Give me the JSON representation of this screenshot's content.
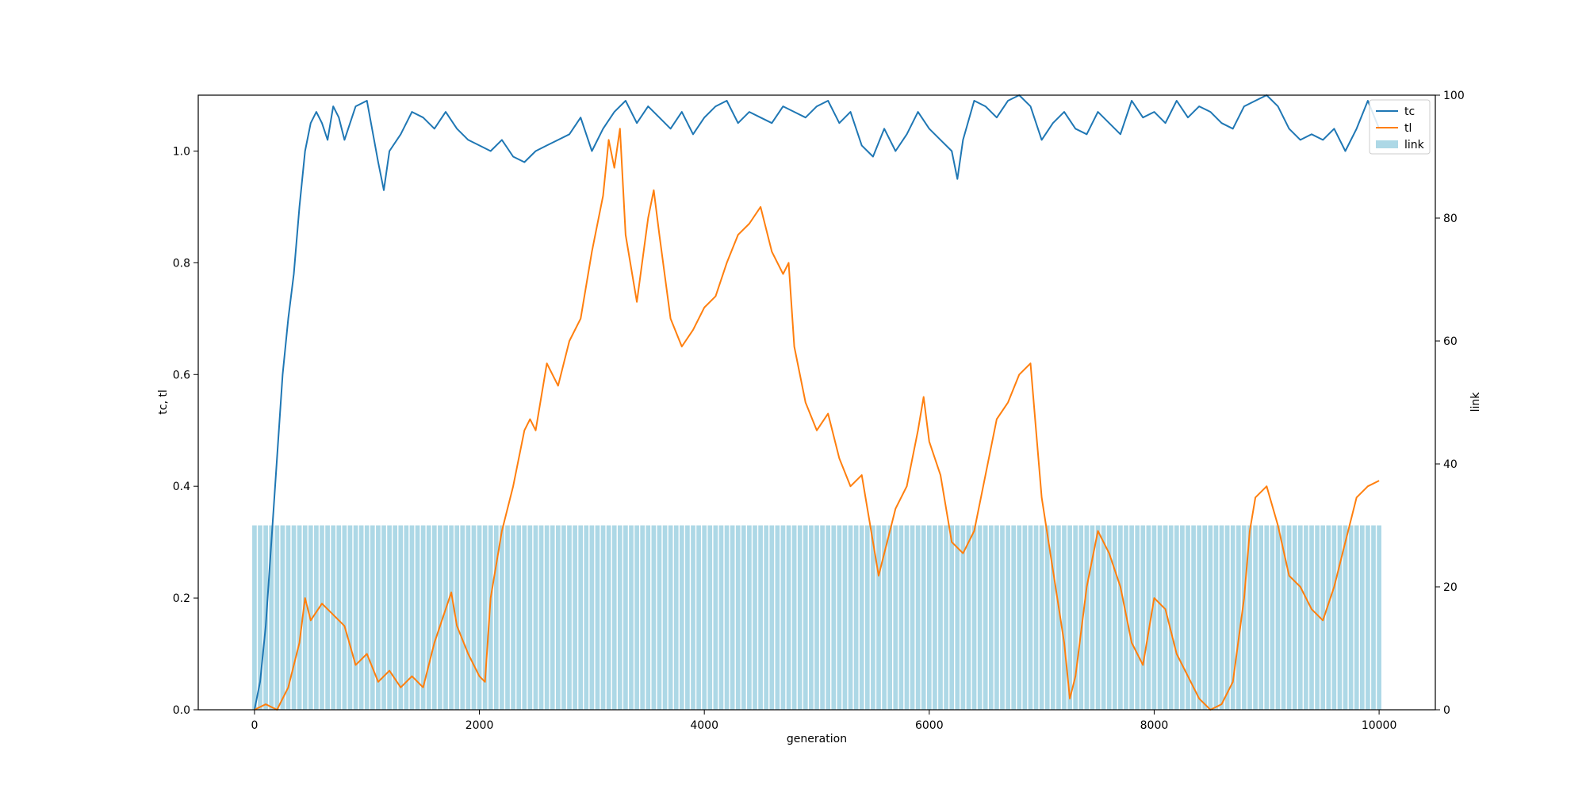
{
  "chart_data": {
    "type": "line",
    "title": "",
    "xlabel": "generation",
    "ylabel": "tc, tl",
    "y2label": "link",
    "xlim": [
      -500,
      10500
    ],
    "ylim": [
      0,
      1.1
    ],
    "y2lim": [
      0,
      100
    ],
    "xticks": [
      0,
      2000,
      4000,
      6000,
      8000,
      10000
    ],
    "xtick_labels": [
      "0",
      "2000",
      "4000",
      "6000",
      "8000",
      "10000"
    ],
    "yticks": [
      0,
      0.2,
      0.4,
      0.6,
      0.8,
      1.0
    ],
    "ytick_labels": [
      "0.0",
      "0.2",
      "0.4",
      "0.6",
      "0.8",
      "1.0"
    ],
    "y2ticks": [
      0,
      20,
      40,
      60,
      80,
      100
    ],
    "y2tick_labels": [
      "0",
      "20",
      "40",
      "60",
      "80",
      "100"
    ],
    "grid": false,
    "legend_position": "top-right",
    "series": [
      {
        "name": "tc",
        "axis": "left",
        "kind": "line",
        "color": "#1f77b4",
        "x": [
          0,
          50,
          100,
          150,
          200,
          250,
          300,
          350,
          400,
          450,
          500,
          550,
          600,
          650,
          700,
          750,
          800,
          900,
          1000,
          1100,
          1150,
          1200,
          1300,
          1400,
          1500,
          1600,
          1700,
          1800,
          1900,
          2000,
          2100,
          2200,
          2300,
          2400,
          2500,
          2600,
          2700,
          2800,
          2900,
          3000,
          3100,
          3200,
          3300,
          3400,
          3500,
          3600,
          3700,
          3800,
          3900,
          4000,
          4100,
          4200,
          4300,
          4400,
          4500,
          4600,
          4700,
          4800,
          4900,
          5000,
          5100,
          5200,
          5300,
          5400,
          5500,
          5600,
          5700,
          5800,
          5900,
          6000,
          6100,
          6200,
          6250,
          6300,
          6400,
          6500,
          6600,
          6700,
          6800,
          6900,
          7000,
          7100,
          7200,
          7300,
          7400,
          7500,
          7600,
          7700,
          7800,
          7900,
          8000,
          8100,
          8200,
          8300,
          8400,
          8500,
          8600,
          8700,
          8800,
          8900,
          9000,
          9100,
          9200,
          9300,
          9400,
          9500,
          9600,
          9700,
          9800,
          9900,
          10000
        ],
        "values": [
          0.0,
          0.05,
          0.15,
          0.3,
          0.45,
          0.6,
          0.7,
          0.78,
          0.9,
          1.0,
          1.05,
          1.07,
          1.05,
          1.02,
          1.08,
          1.06,
          1.02,
          1.08,
          1.09,
          0.98,
          0.93,
          1.0,
          1.03,
          1.07,
          1.06,
          1.04,
          1.07,
          1.04,
          1.02,
          1.01,
          1.0,
          1.02,
          0.99,
          0.98,
          1.0,
          1.01,
          1.02,
          1.03,
          1.06,
          1.0,
          1.04,
          1.07,
          1.09,
          1.05,
          1.08,
          1.06,
          1.04,
          1.07,
          1.03,
          1.06,
          1.08,
          1.09,
          1.05,
          1.07,
          1.06,
          1.05,
          1.08,
          1.07,
          1.06,
          1.08,
          1.09,
          1.05,
          1.07,
          1.01,
          0.99,
          1.04,
          1.0,
          1.03,
          1.07,
          1.04,
          1.02,
          1.0,
          0.95,
          1.02,
          1.09,
          1.08,
          1.06,
          1.09,
          1.1,
          1.08,
          1.02,
          1.05,
          1.07,
          1.04,
          1.03,
          1.07,
          1.05,
          1.03,
          1.09,
          1.06,
          1.07,
          1.05,
          1.09,
          1.06,
          1.08,
          1.07,
          1.05,
          1.04,
          1.08,
          1.09,
          1.1,
          1.08,
          1.04,
          1.02,
          1.03,
          1.02,
          1.04,
          1.0,
          1.04,
          1.09,
          1.04
        ]
      },
      {
        "name": "tl",
        "axis": "left",
        "kind": "line",
        "color": "#ff7f0e",
        "x": [
          0,
          100,
          200,
          300,
          400,
          450,
          500,
          600,
          700,
          800,
          900,
          1000,
          1100,
          1200,
          1300,
          1400,
          1500,
          1600,
          1700,
          1750,
          1800,
          1900,
          2000,
          2050,
          2100,
          2200,
          2300,
          2400,
          2450,
          2500,
          2600,
          2700,
          2800,
          2900,
          3000,
          3100,
          3150,
          3200,
          3250,
          3300,
          3400,
          3500,
          3550,
          3600,
          3700,
          3800,
          3900,
          4000,
          4100,
          4200,
          4300,
          4400,
          4500,
          4600,
          4700,
          4750,
          4800,
          4900,
          5000,
          5100,
          5200,
          5300,
          5400,
          5500,
          5550,
          5600,
          5700,
          5800,
          5900,
          5950,
          6000,
          6100,
          6200,
          6300,
          6400,
          6500,
          6600,
          6700,
          6800,
          6900,
          6950,
          7000,
          7100,
          7200,
          7250,
          7300,
          7400,
          7500,
          7600,
          7700,
          7800,
          7900,
          8000,
          8100,
          8200,
          8300,
          8400,
          8500,
          8600,
          8700,
          8800,
          8850,
          8900,
          9000,
          9100,
          9200,
          9300,
          9400,
          9500,
          9600,
          9700,
          9800,
          9900,
          10000
        ],
        "values": [
          0.0,
          0.01,
          0.0,
          0.04,
          0.12,
          0.2,
          0.16,
          0.19,
          0.17,
          0.15,
          0.08,
          0.1,
          0.05,
          0.07,
          0.04,
          0.06,
          0.04,
          0.12,
          0.18,
          0.21,
          0.15,
          0.1,
          0.06,
          0.05,
          0.2,
          0.32,
          0.4,
          0.5,
          0.52,
          0.5,
          0.62,
          0.58,
          0.66,
          0.7,
          0.82,
          0.92,
          1.02,
          0.97,
          1.04,
          0.85,
          0.73,
          0.88,
          0.93,
          0.85,
          0.7,
          0.65,
          0.68,
          0.72,
          0.74,
          0.8,
          0.85,
          0.87,
          0.9,
          0.82,
          0.78,
          0.8,
          0.65,
          0.55,
          0.5,
          0.53,
          0.45,
          0.4,
          0.42,
          0.3,
          0.24,
          0.28,
          0.36,
          0.4,
          0.5,
          0.56,
          0.48,
          0.42,
          0.3,
          0.28,
          0.32,
          0.42,
          0.52,
          0.55,
          0.6,
          0.62,
          0.5,
          0.38,
          0.25,
          0.12,
          0.02,
          0.06,
          0.22,
          0.32,
          0.28,
          0.22,
          0.12,
          0.08,
          0.2,
          0.18,
          0.1,
          0.06,
          0.02,
          0.0,
          0.01,
          0.05,
          0.2,
          0.32,
          0.38,
          0.4,
          0.33,
          0.24,
          0.22,
          0.18,
          0.16,
          0.22,
          0.3,
          0.38,
          0.4,
          0.41
        ]
      },
      {
        "name": "link",
        "axis": "right",
        "kind": "bar",
        "color": "#add8e6",
        "x_start": 0,
        "x_step": 50,
        "count": 201,
        "bar_width": 40,
        "value": 30
      }
    ]
  }
}
